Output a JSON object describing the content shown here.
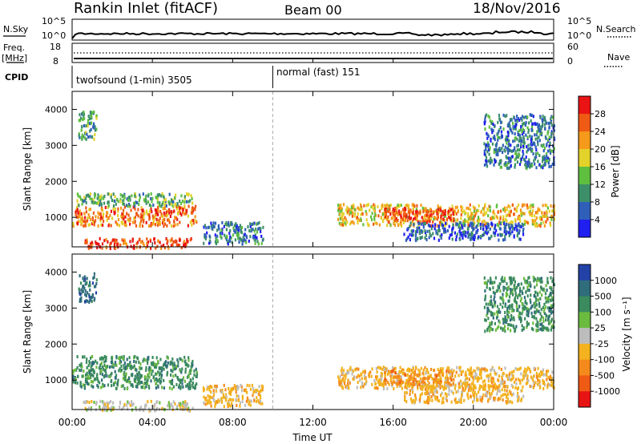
{
  "header": {
    "title": "Rankin Inlet (fitACF)",
    "beam": "Beam 00",
    "date": "18/Nov/2016"
  },
  "summary": {
    "nsky_label": "N.Sky",
    "nsearch_label": "N.Search",
    "nsky_ticks": [
      "10^5",
      "10^0"
    ],
    "nsearch_ticks": [
      "10^5",
      "10^0"
    ],
    "freq_label": "Freq.",
    "freq_unit": "[MHz]",
    "freq_ticks": [
      "18",
      "8"
    ],
    "nave_label": "Nave",
    "nave_ticks": [
      "60",
      "0"
    ],
    "cpid_label": "CPID",
    "cpid_segments": [
      {
        "name": "twofsound (1-min)",
        "id": "3505"
      },
      {
        "name": "normal (fast)",
        "id": "151"
      }
    ],
    "cpid_change_hour": 10.0
  },
  "xaxis": {
    "label": "Time UT",
    "range_hours": [
      0,
      24
    ],
    "ticks": [
      "00:00",
      "04:00",
      "08:00",
      "12:00",
      "16:00",
      "20:00",
      "00:00"
    ]
  },
  "power_panel": {
    "ylabel": "Slant Range [km]",
    "yticks": [
      "1000",
      "2000",
      "3000",
      "4000"
    ],
    "cbar_label": "Power [dB]",
    "cbar_ticks": [
      "4",
      "8",
      "12",
      "16",
      "20",
      "24",
      "28"
    ],
    "cbar_colors": [
      "#1f1ff0",
      "#2f5fb8",
      "#3d8f6a",
      "#5fbf3f",
      "#e3d22a",
      "#f59a1b",
      "#ef5a14",
      "#ea1414"
    ]
  },
  "velocity_panel": {
    "ylabel": "Slant Range [km]",
    "yticks": [
      "1000",
      "2000",
      "3000",
      "4000"
    ],
    "cbar_label": "Velocity [m s⁻¹]",
    "cbar_ticks": [
      "1000",
      "500",
      "100",
      "25",
      "-25",
      "-100",
      "-500",
      "-1000"
    ],
    "cbar_colors": [
      "#2342a8",
      "#2f6c7c",
      "#3b8b5e",
      "#6bbb3f",
      "#bdbdbd",
      "#f3b21e",
      "#f58a1c",
      "#ef5a14",
      "#e81414"
    ]
  },
  "chart_data": {
    "type": "heatmap",
    "title": "Rankin Inlet (fitACF)",
    "xlabel": "Time UT",
    "ylabel": "Slant Range [km]",
    "xlim_hours": [
      0,
      24
    ],
    "ylim_km": [
      180,
      4500
    ],
    "scatter_regions": [
      {
        "t": [
          0.0,
          6.2
        ],
        "r": [
          800,
          1350
        ],
        "power_db": 26,
        "velocity_class": "100"
      },
      {
        "t": [
          0.2,
          6.0
        ],
        "r": [
          1350,
          1700
        ],
        "power_db": 14,
        "velocity_class": "100"
      },
      {
        "t": [
          0.5,
          6.0
        ],
        "r": [
          180,
          450
        ],
        "power_db": 29,
        "velocity_class": "-25"
      },
      {
        "t": [
          6.5,
          9.5
        ],
        "r": [
          300,
          900
        ],
        "power_db": 10,
        "velocity_class": "-100"
      },
      {
        "t": [
          13.2,
          24.0
        ],
        "r": [
          800,
          1400
        ],
        "power_db": 22,
        "velocity_class": "-100"
      },
      {
        "t": [
          15.5,
          19.0
        ],
        "r": [
          900,
          1300
        ],
        "power_db": 29,
        "velocity_class": "-500"
      },
      {
        "t": [
          16.5,
          22.5
        ],
        "r": [
          400,
          900
        ],
        "power_db": 8,
        "velocity_class": "-100"
      },
      {
        "t": [
          0.3,
          1.2
        ],
        "r": [
          3200,
          4000
        ],
        "power_db": 14,
        "velocity_class": "500"
      },
      {
        "t": [
          20.5,
          24.0
        ],
        "r": [
          2400,
          3900
        ],
        "power_db": 10,
        "velocity_class": "100"
      }
    ]
  }
}
